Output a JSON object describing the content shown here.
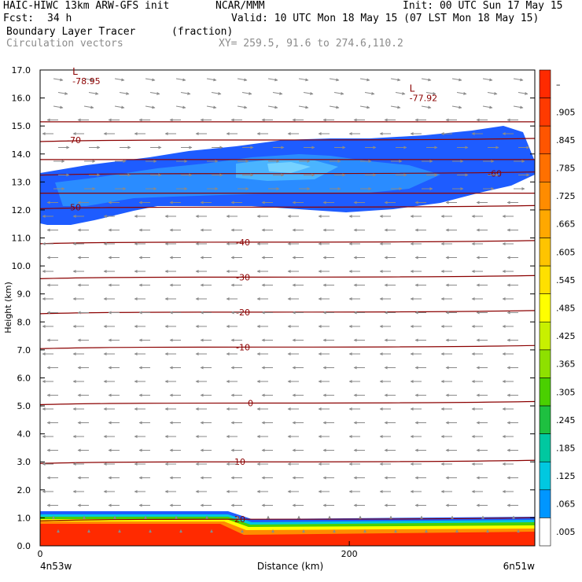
{
  "header": {
    "model": "HAIC-HIWC 13km ARW-GFS init",
    "org": "NCAR/MMM",
    "init": "Init: 00 UTC Sun 17 May 15",
    "fcst_label": "Fcst:",
    "fcst_value": "34 h",
    "valid": "Valid: 10 UTC Mon 18 May 15 (07 LST Mon 18 May 15)",
    "field1": "Boundary Layer Tracer",
    "field1_units": "(fraction)",
    "field2": "Circulation vectors",
    "xy": "XY= 259.5, 91.6 to 274.6,110.2"
  },
  "chart_data": {
    "type": "heatmap",
    "ylabel": "Height (km)",
    "xlabel": "Distance (km)",
    "ylim": [
      0,
      17
    ],
    "y_ticks": [
      "0.0",
      "1.0",
      "2.0",
      "3.0",
      "4.0",
      "5.0",
      "6.0",
      "7.0",
      "8.0",
      "9.0",
      "10.0",
      "11.0",
      "12.0",
      "13.0",
      "14.0",
      "15.0",
      "16.0",
      "17.0"
    ],
    "xlim": [
      0,
      320
    ],
    "x_ticks": [
      {
        "value": 0,
        "label": "0"
      },
      {
        "value": 200,
        "label": "200"
      }
    ],
    "x_end_labels": {
      "left": "4n53w",
      "right": "6n51w"
    },
    "colorbar": {
      "labels": [
        "–",
        ".905",
        ".845",
        ".785",
        ".725",
        ".665",
        ".605",
        ".545",
        ".485",
        ".425",
        ".365",
        ".305",
        ".245",
        ".185",
        ".125",
        ".065",
        ".005"
      ],
      "colors": [
        "#ff2a00",
        "#ff3a00",
        "#ff5500",
        "#ff7000",
        "#ff8c00",
        "#ffa800",
        "#ffc400",
        "#ffe000",
        "#ffff00",
        "#c8f000",
        "#8ee000",
        "#4ad000",
        "#1ec040",
        "#00c8a0",
        "#00c8e0",
        "#0096ff",
        "#ffffff"
      ]
    },
    "isotherms": [
      {
        "label": "-70",
        "height": 14.5
      },
      {
        "label": "-60",
        "height": 13.3
      },
      {
        "label": "-50",
        "height": 12.1
      },
      {
        "label": "-40",
        "height": 10.85
      },
      {
        "label": "-30",
        "height": 9.6
      },
      {
        "label": "-20",
        "height": 8.35
      },
      {
        "label": "-10",
        "height": 7.1
      },
      {
        "label": "0",
        "height": 5.1
      },
      {
        "label": "10",
        "height": 3.0
      },
      {
        "label": "20",
        "height": 0.95
      }
    ],
    "extrema": [
      {
        "symbol": "L",
        "value": "-78.95",
        "x": 25,
        "height": 16.6
      },
      {
        "symbol": "L",
        "value": "-77.92",
        "x": 243,
        "height": 16.0
      }
    ],
    "wind_vectors": "circulation vectors, predominantly westward (leftward) at most levels, eastward near 13 km"
  }
}
